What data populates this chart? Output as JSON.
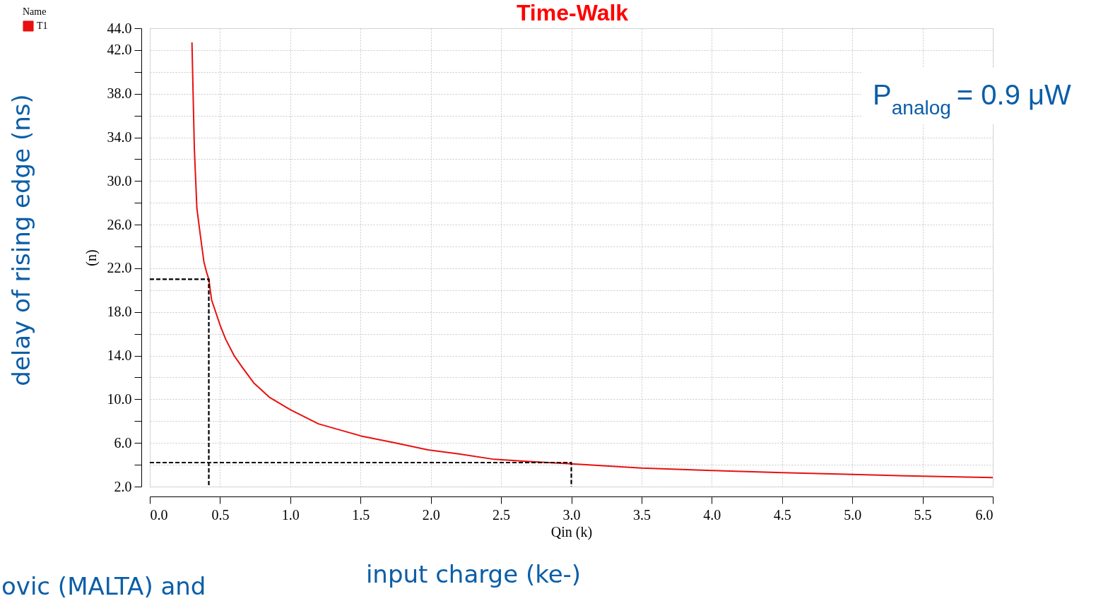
{
  "chart_data": {
    "type": "line",
    "title": "Time-Walk",
    "xlabel": "Qin (k)",
    "ylabel": "(n)",
    "legend_title": "Name",
    "legend": "top left",
    "grid": true,
    "xlim": [
      0,
      6
    ],
    "xticks": [
      {
        "value": 0,
        "label": "0.0"
      },
      0.5,
      {
        "value": 1,
        "label": "1.0"
      },
      1.5,
      {
        "value": 2,
        "label": "2.0"
      },
      2.5,
      {
        "value": 3,
        "label": "3.0"
      },
      3.5,
      {
        "value": 4,
        "label": "4.0"
      },
      4.5,
      {
        "value": 5,
        "label": "5.0"
      },
      5.5,
      {
        "value": 6,
        "label": "6.0"
      }
    ],
    "ylim": [
      2,
      44
    ],
    "yticks": [
      {
        "value": 2,
        "label": "2.0"
      },
      {
        "value": 4,
        "label": null
      },
      {
        "value": 6,
        "label": "6.0"
      },
      {
        "value": 8,
        "label": null
      },
      {
        "value": 10,
        "label": "10.0"
      },
      {
        "value": 12,
        "label": null
      },
      {
        "value": 14,
        "label": "14.0"
      },
      {
        "value": 16,
        "label": null
      },
      {
        "value": 18,
        "label": "18.0"
      },
      {
        "value": 20,
        "label": null
      },
      {
        "value": 22,
        "label": "22.0"
      },
      {
        "value": 24,
        "label": null
      },
      {
        "value": 26,
        "label": "26.0"
      },
      {
        "value": 28,
        "label": null
      },
      {
        "value": 30,
        "label": "30.0"
      },
      {
        "value": 32,
        "label": null
      },
      {
        "value": 34,
        "label": "34.0"
      },
      {
        "value": 36,
        "label": null
      },
      {
        "value": 38,
        "label": "38.0"
      },
      {
        "value": 40,
        "label": null
      },
      {
        "value": 42,
        "label": "42.0"
      },
      {
        "value": 44,
        "label": "44.0"
      }
    ],
    "series": [
      {
        "name": "T1",
        "color": "#e81010",
        "line_style": "solid",
        "x": [
          0.3,
          0.31,
          0.317,
          0.335,
          0.36,
          0.385,
          0.405,
          0.42,
          0.44,
          0.5,
          0.54,
          0.6,
          0.66,
          0.74,
          0.85,
          1.0,
          1.1,
          1.2,
          1.35,
          1.5,
          1.75,
          1.98,
          2.2,
          2.45,
          2.7,
          2.98,
          3.5,
          4.0,
          4.5,
          5.0,
          5.5,
          6.0
        ],
        "values": [
          42.7,
          37,
          33,
          27.5,
          25.0,
          22.6,
          21.6,
          21.0,
          19.1,
          16.8,
          15.5,
          14.0,
          12.9,
          11.5,
          10.2,
          9.05,
          8.4,
          7.75,
          7.2,
          6.65,
          6.0,
          5.36,
          5.0,
          4.5,
          4.3,
          4.1,
          3.7,
          3.48,
          3.28,
          3.11,
          2.95,
          2.82
        ]
      },
      {
        "color": "#000000",
        "line_style": "dashed",
        "x": [
          0,
          0.42,
          0.42
        ],
        "values": [
          21.0,
          21.0,
          2
        ]
      },
      {
        "color": "#000000",
        "line_style": "dashed",
        "x": [
          0,
          3.0,
          3.0
        ],
        "values": [
          4.2,
          4.2,
          2
        ]
      }
    ],
    "annotations": [
      "delay of rising edge (ns)",
      "input charge (ke-)",
      "P$_{analog}$ = 0.9 μW",
      "ovic (MALTA) and"
    ]
  }
}
